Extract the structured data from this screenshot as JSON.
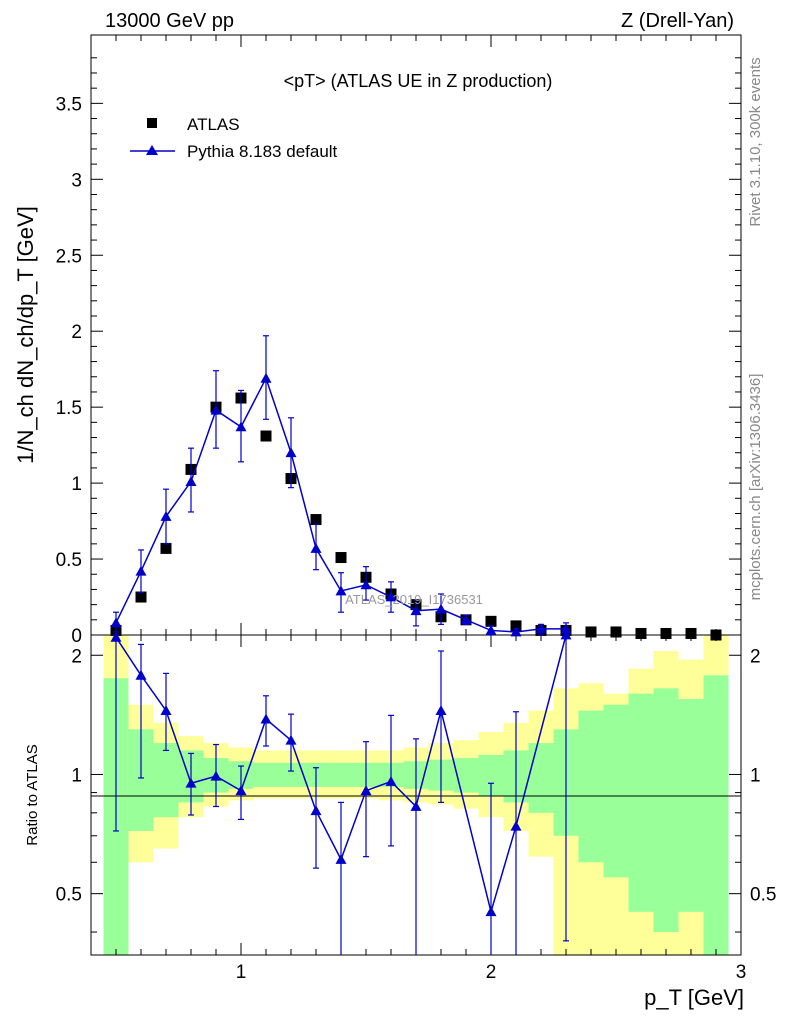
{
  "header": {
    "left": "13000 GeV pp",
    "right": "Z (Drell-Yan)"
  },
  "side_labels": {
    "rivet": "Rivet 3.1.10,  300k events",
    "mcplots": "mcplots.cern.ch [arXiv:1306.3436]"
  },
  "watermark": "ATLAS_2019_I1736531",
  "colors": {
    "mc": "#0000cc",
    "data": "#000000",
    "band_inner": "#99ff99",
    "band_outer": "#ffff99"
  },
  "chart_data": {
    "type": "scatter",
    "title": "<pT> (ATLAS UE in Z production)",
    "xlabel": "p_T [GeV]",
    "ylabel": "1/N_ch dN_ch/dp_T [GeV]",
    "ratio_ylabel": "Ratio to ATLAS",
    "xlim": [
      0.4,
      3.0
    ],
    "ylim": [
      0,
      3.95
    ],
    "ratio_ylim": [
      0.35,
      2.25
    ],
    "x_ticks": [
      1,
      2,
      3
    ],
    "y_ticks": [
      0,
      0.5,
      1,
      1.5,
      2,
      2.5,
      3,
      3.5
    ],
    "ratio_y_ticks": [
      0.5,
      1,
      2
    ],
    "legend": [
      {
        "name": "ATLAS",
        "marker": "square"
      },
      {
        "name": "Pythia 8.183 default",
        "marker": "triangle"
      }
    ],
    "x": [
      0.5,
      0.6,
      0.7,
      0.8,
      0.9,
      1.0,
      1.1,
      1.2,
      1.3,
      1.4,
      1.5,
      1.6,
      1.7,
      1.8,
      1.9,
      2.0,
      2.1,
      2.2,
      2.3,
      2.4,
      2.5,
      2.6,
      2.7,
      2.8,
      2.9
    ],
    "series": [
      {
        "name": "ATLAS",
        "values": [
          0.03,
          0.25,
          0.57,
          1.09,
          1.5,
          1.56,
          1.31,
          1.03,
          0.76,
          0.51,
          0.38,
          0.27,
          0.2,
          0.12,
          0.1,
          0.09,
          0.06,
          0.03,
          0.03,
          0.02,
          0.02,
          0.01,
          0.01,
          0.01,
          0.0
        ]
      },
      {
        "name": "Pythia 8.183 default",
        "x": [
          0.5,
          0.6,
          0.7,
          0.8,
          0.9,
          1.0,
          1.1,
          1.2,
          1.3,
          1.4,
          1.5,
          1.6,
          1.7,
          1.8,
          1.9,
          2.0,
          2.1,
          2.2,
          2.3
        ],
        "values": [
          0.08,
          0.42,
          0.78,
          1.01,
          1.48,
          1.37,
          1.69,
          1.2,
          0.57,
          0.29,
          0.33,
          0.25,
          0.16,
          0.17,
          0.1,
          0.03,
          0.02,
          0.04,
          0.04
        ],
        "err_lo": [
          0.06,
          0.14,
          0.18,
          0.2,
          0.25,
          0.23,
          0.27,
          0.23,
          0.14,
          0.14,
          0.1,
          0.1,
          0.1,
          0.1,
          0.03,
          0.03,
          0.02,
          0.04,
          0.04
        ],
        "err_hi": [
          0.07,
          0.14,
          0.18,
          0.22,
          0.26,
          0.24,
          0.28,
          0.23,
          0.16,
          0.12,
          0.12,
          0.1,
          0.07,
          0.1,
          0.03,
          0.03,
          0.02,
          0.03,
          0.04
        ]
      }
    ],
    "ratio": {
      "x": [
        0.5,
        0.6,
        0.7,
        0.8,
        0.9,
        1.0,
        1.1,
        1.2,
        1.3,
        1.4,
        1.5,
        1.6,
        1.7,
        1.8,
        1.9,
        2.0,
        2.1,
        2.2,
        2.3
      ],
      "values": [
        2.22,
        1.78,
        1.45,
        0.95,
        0.99,
        0.91,
        1.38,
        1.22,
        0.81,
        0.61,
        0.91,
        0.96,
        0.83,
        1.45,
        null,
        0.45,
        0.74,
        null,
        2.28
      ],
      "err_lo": [
        1.5,
        0.8,
        0.3,
        0.16,
        0.16,
        0.14,
        0.2,
        0.2,
        0.23,
        0.3,
        0.29,
        0.3,
        0.48,
        0.6,
        null,
        0.1,
        0.4,
        null,
        1.9
      ],
      "err_hi": [
        0.05,
        0.35,
        0.35,
        0.18,
        0.2,
        0.14,
        0.2,
        0.2,
        0.23,
        0.24,
        0.3,
        0.45,
        0.4,
        0.6,
        null,
        0.5,
        0.7,
        null,
        0.05
      ]
    },
    "bands": {
      "edges": [
        0.45,
        0.55,
        0.65,
        0.75,
        0.85,
        0.95,
        1.05,
        1.15,
        1.25,
        1.35,
        1.45,
        1.55,
        1.65,
        1.75,
        1.85,
        1.95,
        2.05,
        2.15,
        2.25,
        2.35,
        2.45,
        2.55,
        2.65,
        2.75,
        2.85,
        2.95
      ],
      "inner_lo": [
        0.3,
        0.72,
        0.78,
        0.85,
        0.9,
        0.92,
        0.93,
        0.93,
        0.93,
        0.93,
        0.93,
        0.93,
        0.92,
        0.91,
        0.9,
        0.88,
        0.85,
        0.8,
        0.7,
        0.6,
        0.55,
        0.45,
        0.4,
        0.45,
        0.3
      ],
      "inner_hi": [
        1.75,
        1.3,
        1.2,
        1.15,
        1.1,
        1.08,
        1.07,
        1.07,
        1.07,
        1.07,
        1.07,
        1.07,
        1.08,
        1.09,
        1.1,
        1.12,
        1.15,
        1.2,
        1.3,
        1.45,
        1.5,
        1.6,
        1.65,
        1.55,
        1.78
      ],
      "outer_lo": [
        0.3,
        0.6,
        0.65,
        0.78,
        0.83,
        0.86,
        0.87,
        0.87,
        0.87,
        0.87,
        0.87,
        0.86,
        0.85,
        0.84,
        0.82,
        0.78,
        0.72,
        0.62,
        0.35,
        0.35,
        0.35,
        0.35,
        0.35,
        0.35,
        0.35
      ],
      "outer_hi": [
        2.25,
        1.5,
        1.35,
        1.25,
        1.2,
        1.17,
        1.15,
        1.15,
        1.15,
        1.15,
        1.15,
        1.15,
        1.17,
        1.2,
        1.22,
        1.28,
        1.35,
        1.45,
        1.65,
        1.7,
        1.6,
        1.85,
        2.05,
        1.95,
        2.25
      ]
    }
  }
}
